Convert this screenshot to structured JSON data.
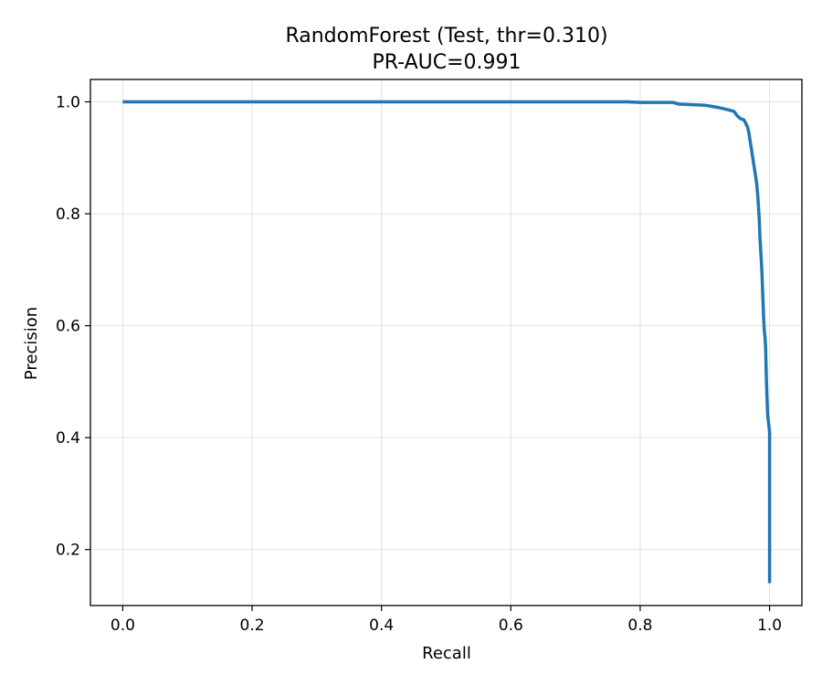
{
  "chart_data": {
    "type": "line",
    "title": "RandomForest (Test, thr=0.310)",
    "subtitle": "PR-AUC=0.991",
    "xlabel": "Recall",
    "ylabel": "Precision",
    "xlim": [
      -0.05,
      1.05
    ],
    "ylim": [
      0.1,
      1.04
    ],
    "xticks": [
      0.0,
      0.2,
      0.4,
      0.6,
      0.8,
      1.0
    ],
    "xtick_labels": [
      "0.0",
      "0.2",
      "0.4",
      "0.6",
      "0.8",
      "1.0"
    ],
    "yticks": [
      0.2,
      0.4,
      0.6,
      0.8,
      1.0
    ],
    "ytick_labels": [
      "0.2",
      "0.4",
      "0.6",
      "0.8",
      "1.0"
    ],
    "grid": true,
    "colors": {
      "line": "#1f77b4"
    },
    "series": [
      {
        "x": [
          0.0,
          0.3,
          0.6,
          0.78,
          0.8,
          0.85,
          0.86,
          0.88,
          0.9,
          0.91,
          0.92,
          0.935,
          0.945,
          0.95,
          0.955,
          0.96,
          0.963,
          0.966,
          0.968,
          0.97,
          0.972,
          0.974,
          0.976,
          0.978,
          0.98,
          0.982,
          0.984,
          0.985,
          0.987,
          0.988,
          0.989,
          0.99,
          0.991,
          0.992,
          0.993,
          0.994,
          0.995,
          0.996,
          0.997,
          0.998,
          0.999,
          1.0,
          1.0
        ],
        "y": [
          1.0,
          1.0,
          1.0,
          1.0,
          0.999,
          0.999,
          0.996,
          0.995,
          0.994,
          0.992,
          0.99,
          0.986,
          0.983,
          0.975,
          0.97,
          0.968,
          0.962,
          0.955,
          0.945,
          0.93,
          0.915,
          0.9,
          0.885,
          0.87,
          0.855,
          0.83,
          0.79,
          0.76,
          0.72,
          0.7,
          0.67,
          0.64,
          0.61,
          0.59,
          0.58,
          0.56,
          0.51,
          0.47,
          0.44,
          0.43,
          0.42,
          0.41,
          0.14
        ]
      }
    ]
  }
}
